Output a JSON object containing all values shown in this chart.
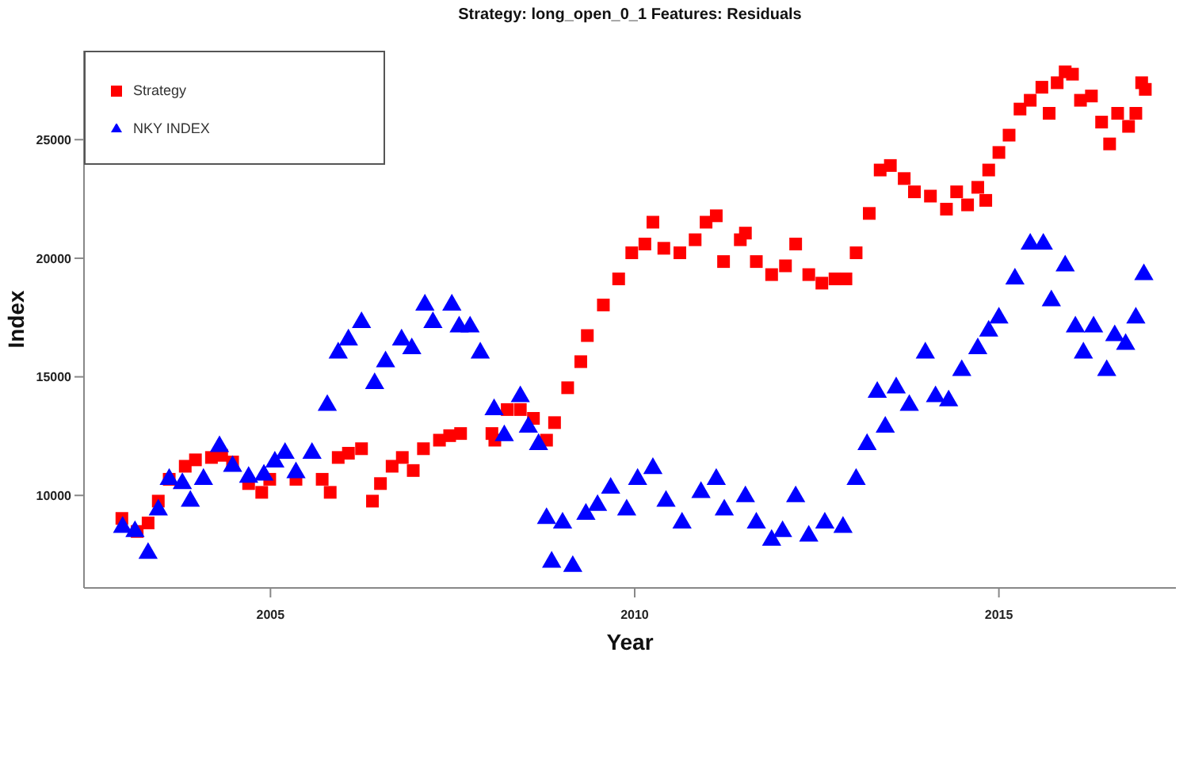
{
  "chart_data": {
    "type": "scatter",
    "title": "Strategy: long_open_0_1   Features: Residuals",
    "xlabel": "Year",
    "ylabel": "Index",
    "xlim": [
      2002.44,
      2017.43
    ],
    "xticks": [
      2005,
      2010,
      2015
    ],
    "ylim": [
      6100,
      28750
    ],
    "yticks": [
      10000,
      15000,
      20000,
      25000
    ],
    "grid": false,
    "legend": "top left",
    "series": [
      {
        "name": "Strategy",
        "color": "#ff0000",
        "marker": "square",
        "x": [
          2002.96,
          2003.17,
          2003.32,
          2003.46,
          2003.61,
          2003.83,
          2003.97,
          2004.19,
          2004.33,
          2004.48,
          2004.7,
          2004.88,
          2004.99,
          2005.35,
          2005.71,
          2005.82,
          2005.93,
          2006.07,
          2006.25,
          2006.4,
          2006.51,
          2006.67,
          2006.81,
          2006.96,
          2007.1,
          2007.32,
          2007.46,
          2007.61,
          2008.04,
          2008.08,
          2008.25,
          2008.43,
          2008.61,
          2008.79,
          2008.9,
          2009.08,
          2009.26,
          2009.35,
          2009.57,
          2009.78,
          2009.96,
          2010.14,
          2010.25,
          2010.4,
          2010.62,
          2010.83,
          2010.98,
          2011.12,
          2011.22,
          2011.45,
          2011.52,
          2011.67,
          2011.88,
          2012.07,
          2012.21,
          2012.39,
          2012.57,
          2012.75,
          2012.9,
          2013.04,
          2013.22,
          2013.37,
          2013.51,
          2013.7,
          2013.84,
          2014.06,
          2014.28,
          2014.42,
          2014.57,
          2014.71,
          2014.82,
          2014.86,
          2015.0,
          2015.14,
          2015.29,
          2015.43,
          2015.59,
          2015.69,
          2015.8,
          2015.91,
          2016.01,
          2016.12,
          2016.27,
          2016.41,
          2016.52,
          2016.63,
          2016.78,
          2016.88,
          2016.96,
          2017.01
        ],
        "values": [
          9030,
          8480,
          8840,
          9760,
          10680,
          11230,
          11500,
          11600,
          11690,
          11410,
          10500,
          10130,
          10680,
          10680,
          10680,
          10130,
          11600,
          11780,
          11970,
          9760,
          10500,
          11230,
          11600,
          11050,
          11970,
          12330,
          12520,
          12610,
          12610,
          12330,
          13620,
          13620,
          13250,
          12330,
          13070,
          14540,
          15640,
          16740,
          18030,
          19130,
          20230,
          20600,
          21520,
          20420,
          20230,
          20780,
          21520,
          21790,
          19860,
          20780,
          21060,
          19860,
          19310,
          19680,
          20600,
          19310,
          18950,
          19130,
          19130,
          20230,
          21890,
          23720,
          23910,
          23360,
          22800,
          22620,
          22070,
          22800,
          22250,
          22990,
          22440,
          23720,
          24460,
          25190,
          26290,
          26660,
          27210,
          26110,
          27400,
          27860,
          27760,
          26660,
          26840,
          25740,
          24820,
          26110,
          25560,
          26110,
          27400,
          27120
        ]
      },
      {
        "name": "NKY INDEX",
        "color": "#0000ff",
        "marker": "triangle",
        "x": [
          2002.97,
          2003.14,
          2003.32,
          2003.46,
          2003.61,
          2003.79,
          2003.9,
          2004.08,
          2004.3,
          2004.48,
          2004.7,
          2004.91,
          2005.06,
          2005.2,
          2005.35,
          2005.57,
          2005.78,
          2005.93,
          2006.07,
          2006.25,
          2006.43,
          2006.58,
          2006.8,
          2006.94,
          2007.12,
          2007.23,
          2007.49,
          2007.59,
          2007.74,
          2007.88,
          2008.07,
          2008.21,
          2008.43,
          2008.54,
          2008.68,
          2008.79,
          2008.86,
          2009.01,
          2009.15,
          2009.33,
          2009.49,
          2009.67,
          2009.89,
          2010.04,
          2010.25,
          2010.43,
          2010.65,
          2010.91,
          2011.12,
          2011.23,
          2011.52,
          2011.67,
          2011.88,
          2012.03,
          2012.21,
          2012.39,
          2012.61,
          2012.86,
          2013.04,
          2013.19,
          2013.33,
          2013.44,
          2013.59,
          2013.77,
          2013.99,
          2014.13,
          2014.31,
          2014.49,
          2014.71,
          2014.86,
          2015.0,
          2015.22,
          2015.43,
          2015.61,
          2015.72,
          2015.91,
          2016.05,
          2016.16,
          2016.3,
          2016.48,
          2016.59,
          2016.74,
          2016.88,
          2016.99
        ],
        "values": [
          8660,
          8480,
          7560,
          9390,
          10680,
          10500,
          9760,
          10680,
          12060,
          11230,
          10770,
          10860,
          11410,
          11780,
          10960,
          11780,
          13800,
          16010,
          16560,
          17290,
          14720,
          15640,
          16560,
          16190,
          18030,
          17290,
          18030,
          17110,
          17110,
          16010,
          13620,
          12520,
          14170,
          12880,
          12150,
          9030,
          7190,
          8840,
          7010,
          9210,
          9580,
          10310,
          9390,
          10680,
          11140,
          9760,
          8840,
          10130,
          10680,
          9390,
          9950,
          8840,
          8110,
          8480,
          9950,
          8290,
          8840,
          8660,
          10680,
          12150,
          14350,
          12880,
          14540,
          13800,
          16010,
          14170,
          13990,
          15270,
          16190,
          16930,
          17480,
          19130,
          20600,
          20600,
          18210,
          19680,
          17110,
          16010,
          17110,
          15270,
          16740,
          16370,
          17480,
          19310
        ]
      }
    ]
  }
}
